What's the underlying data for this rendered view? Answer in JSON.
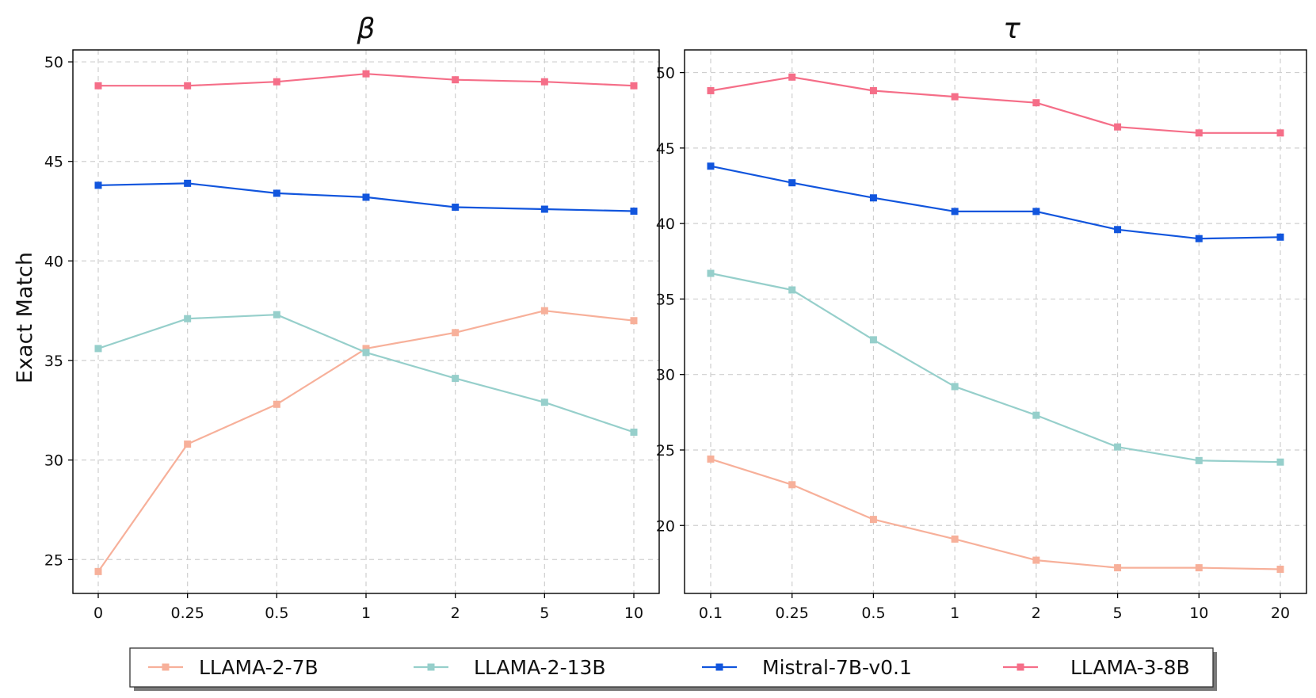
{
  "chart_data": [
    {
      "type": "line",
      "title": "β",
      "xlabel": "",
      "ylabel": "Exact Match",
      "categories": [
        "0",
        "0.25",
        "0.5",
        "1",
        "2",
        "5",
        "10"
      ],
      "ylim": [
        23.3,
        50.6
      ],
      "yticks": [
        25,
        30,
        35,
        40,
        45,
        50
      ],
      "grid": true,
      "series": [
        {
          "name": "LLAMA-2-7B",
          "color": "#f7b09a",
          "values": [
            24.4,
            30.8,
            32.8,
            35.6,
            36.4,
            37.5,
            37.0
          ]
        },
        {
          "name": "LLAMA-2-13B",
          "color": "#96cfcb",
          "values": [
            35.6,
            37.1,
            37.3,
            35.4,
            34.1,
            32.9,
            31.4
          ]
        },
        {
          "name": "Mistral-7B-v0.1",
          "color": "#1155dd",
          "values": [
            43.8,
            43.9,
            43.4,
            43.2,
            42.7,
            42.6,
            42.5
          ]
        },
        {
          "name": "LLAMA-3-8B",
          "color": "#f56e88",
          "values": [
            48.8,
            48.8,
            49.0,
            49.4,
            49.1,
            49.0,
            48.8
          ]
        }
      ]
    },
    {
      "type": "line",
      "title": "τ",
      "xlabel": "",
      "ylabel": "",
      "categories": [
        "0.1",
        "0.25",
        "0.5",
        "1",
        "2",
        "5",
        "10",
        "20"
      ],
      "ylim": [
        15.5,
        51.5
      ],
      "yticks": [
        20,
        25,
        30,
        35,
        40,
        45,
        50
      ],
      "grid": true,
      "series": [
        {
          "name": "LLAMA-2-7B",
          "color": "#f7b09a",
          "values": [
            24.4,
            22.7,
            20.4,
            19.1,
            17.7,
            17.2,
            17.2,
            17.1
          ]
        },
        {
          "name": "LLAMA-2-13B",
          "color": "#96cfcb",
          "values": [
            36.7,
            35.6,
            32.3,
            29.2,
            27.3,
            25.2,
            24.3,
            24.2
          ]
        },
        {
          "name": "Mistral-7B-v0.1",
          "color": "#1155dd",
          "values": [
            43.8,
            42.7,
            41.7,
            40.8,
            40.8,
            39.6,
            39.0,
            39.1
          ]
        },
        {
          "name": "LLAMA-3-8B",
          "color": "#f56e88",
          "values": [
            48.8,
            49.7,
            48.8,
            48.4,
            48.0,
            46.4,
            46.0,
            46.0
          ]
        }
      ]
    }
  ],
  "legend": {
    "position": "bottom-center",
    "items": [
      {
        "label": "LLAMA-2-7B",
        "color": "#f7b09a"
      },
      {
        "label": "LLAMA-2-13B",
        "color": "#96cfcb"
      },
      {
        "label": "Mistral-7B-v0.1",
        "color": "#1155dd"
      },
      {
        "label": "LLAMA-3-8B",
        "color": "#f56e88"
      }
    ]
  }
}
